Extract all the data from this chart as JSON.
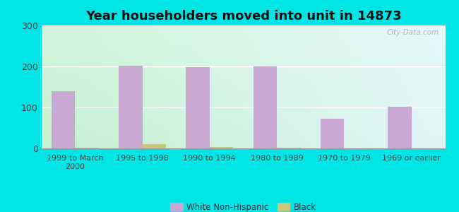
{
  "title": "Year householders moved into unit in 14873",
  "categories": [
    "1999 to March\n2000",
    "1995 to 1998",
    "1990 to 1994",
    "1980 to 1989",
    "1970 to 1979",
    "1969 or earlier"
  ],
  "white_values": [
    140,
    202,
    198,
    200,
    72,
    101
  ],
  "black_values": [
    2,
    10,
    4,
    2,
    0,
    0
  ],
  "white_color": "#c9a8d4",
  "black_color": "#c8c87a",
  "ylim": [
    0,
    300
  ],
  "yticks": [
    0,
    100,
    200,
    300
  ],
  "outer_bg": "#00e5e5",
  "bar_width": 0.35,
  "title_fontsize": 13,
  "watermark": "City-Data.com",
  "grad_top_left": "#d0f0d8",
  "grad_bottom_right": "#e8f8f8"
}
